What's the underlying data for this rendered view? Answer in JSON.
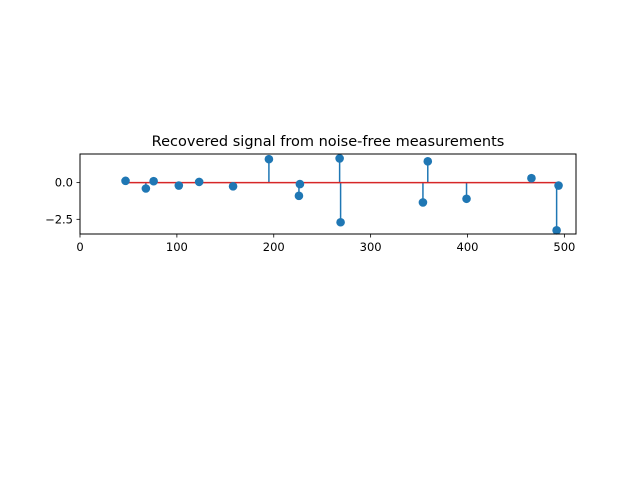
{
  "chart_data": {
    "type": "stem",
    "title": "Recovered signal from noise-free measurements",
    "xlabel": "",
    "ylabel": "",
    "xlim": [
      0,
      512
    ],
    "ylim": [
      -3.5,
      1.95
    ],
    "xticks": [
      0,
      100,
      200,
      300,
      400,
      500
    ],
    "yticks": [
      0.0,
      -2.5
    ],
    "ytick_labels": [
      "0.0",
      "−2.5"
    ],
    "baseline": 0,
    "baseline_range": [
      47,
      494
    ],
    "grid": false,
    "legend": "none",
    "colors": {
      "stem": "#1f77b4",
      "marker": "#1f77b4",
      "baseline": "#d62728"
    },
    "points": [
      {
        "x": 47,
        "y": 0.12
      },
      {
        "x": 68,
        "y": -0.4
      },
      {
        "x": 76,
        "y": 0.1
      },
      {
        "x": 102,
        "y": -0.2
      },
      {
        "x": 123,
        "y": 0.05
      },
      {
        "x": 158,
        "y": -0.25
      },
      {
        "x": 195,
        "y": 1.6
      },
      {
        "x": 226,
        "y": -0.9
      },
      {
        "x": 227,
        "y": -0.1
      },
      {
        "x": 268,
        "y": 1.65
      },
      {
        "x": 269,
        "y": -2.7
      },
      {
        "x": 354,
        "y": -1.35
      },
      {
        "x": 359,
        "y": 1.45
      },
      {
        "x": 399,
        "y": -1.1
      },
      {
        "x": 466,
        "y": 0.3
      },
      {
        "x": 492,
        "y": -3.25
      },
      {
        "x": 494,
        "y": -0.2
      }
    ]
  }
}
